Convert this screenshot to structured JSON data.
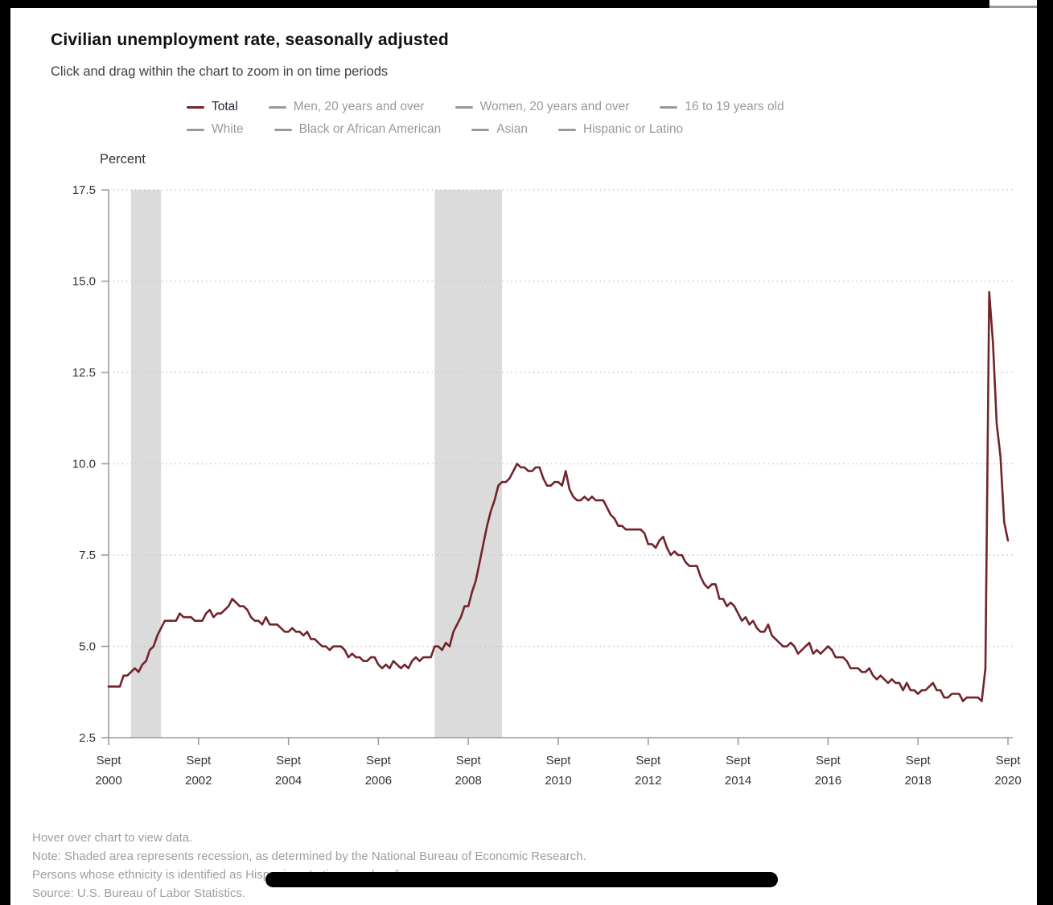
{
  "header": {
    "title": "Civilian unemployment rate, seasonally adjusted",
    "subtitle": "Click and drag within the chart to zoom in on time periods"
  },
  "colors": {
    "accent_line": "#71242a",
    "inactive_gray": "#999999",
    "active_label": "#26263a",
    "grid": "#c9c9c9",
    "axis": "#999999",
    "recession_band": "#dbdbdb",
    "tick_label": "#333333"
  },
  "legend": {
    "rows": [
      [
        {
          "label": "Total",
          "color": "#71242a",
          "label_color": "#26263a",
          "active": true
        },
        {
          "label": "Men, 20 years and over",
          "color": "#999999",
          "label_color": "#999999",
          "active": false
        },
        {
          "label": "Women, 20 years and over",
          "color": "#999999",
          "label_color": "#999999",
          "active": false
        },
        {
          "label": "16 to 19 years old",
          "color": "#999999",
          "label_color": "#999999",
          "active": false
        }
      ],
      [
        {
          "label": "White",
          "color": "#999999",
          "label_color": "#999999",
          "active": false
        },
        {
          "label": "Black or African American",
          "color": "#999999",
          "label_color": "#999999",
          "active": false
        },
        {
          "label": "Asian",
          "color": "#999999",
          "label_color": "#999999",
          "active": false
        },
        {
          "label": "Hispanic or Latino",
          "color": "#999999",
          "label_color": "#999999",
          "active": false
        }
      ]
    ]
  },
  "chart_data": {
    "type": "line",
    "title": "Civilian unemployment rate, seasonally adjusted",
    "ylabel": "Percent",
    "ylim": [
      2.5,
      17.5
    ],
    "y_ticks": [
      2.5,
      5.0,
      7.5,
      10.0,
      12.5,
      15.0,
      17.5
    ],
    "x_month_label": "Sept",
    "x_tick_years": [
      "2000",
      "2002",
      "2004",
      "2006",
      "2008",
      "2010",
      "2012",
      "2014",
      "2016",
      "2018",
      "2020"
    ],
    "x_range": [
      "Sept 2000",
      "Sept 2020"
    ],
    "grid": "dotted-horizontal",
    "legend_position": "top",
    "recessions_month_index": [
      [
        6,
        14
      ],
      [
        87,
        105
      ]
    ],
    "series": [
      {
        "name": "Total",
        "color": "#71242a",
        "start": "Sept 2000",
        "frequency": "monthly",
        "values": [
          3.9,
          3.9,
          3.9,
          3.9,
          4.2,
          4.2,
          4.3,
          4.4,
          4.3,
          4.5,
          4.6,
          4.9,
          5.0,
          5.3,
          5.5,
          5.7,
          5.7,
          5.7,
          5.7,
          5.9,
          5.8,
          5.8,
          5.8,
          5.7,
          5.7,
          5.7,
          5.9,
          6.0,
          5.8,
          5.9,
          5.9,
          6.0,
          6.1,
          6.3,
          6.2,
          6.1,
          6.1,
          6.0,
          5.8,
          5.7,
          5.7,
          5.6,
          5.8,
          5.6,
          5.6,
          5.6,
          5.5,
          5.4,
          5.4,
          5.5,
          5.4,
          5.4,
          5.3,
          5.4,
          5.2,
          5.2,
          5.1,
          5.0,
          5.0,
          4.9,
          5.0,
          5.0,
          5.0,
          4.9,
          4.7,
          4.8,
          4.7,
          4.7,
          4.6,
          4.6,
          4.7,
          4.7,
          4.5,
          4.4,
          4.5,
          4.4,
          4.6,
          4.5,
          4.4,
          4.5,
          4.4,
          4.6,
          4.7,
          4.6,
          4.7,
          4.7,
          4.7,
          5.0,
          5.0,
          4.9,
          5.1,
          5.0,
          5.4,
          5.6,
          5.8,
          6.1,
          6.1,
          6.5,
          6.8,
          7.3,
          7.8,
          8.3,
          8.7,
          9.0,
          9.4,
          9.5,
          9.5,
          9.6,
          9.8,
          10.0,
          9.9,
          9.9,
          9.8,
          9.8,
          9.9,
          9.9,
          9.6,
          9.4,
          9.4,
          9.5,
          9.5,
          9.4,
          9.8,
          9.3,
          9.1,
          9.0,
          9.0,
          9.1,
          9.0,
          9.1,
          9.0,
          9.0,
          9.0,
          8.8,
          8.6,
          8.5,
          8.3,
          8.3,
          8.2,
          8.2,
          8.2,
          8.2,
          8.2,
          8.1,
          7.8,
          7.8,
          7.7,
          7.9,
          8.0,
          7.7,
          7.5,
          7.6,
          7.5,
          7.5,
          7.3,
          7.2,
          7.2,
          7.2,
          6.9,
          6.7,
          6.6,
          6.7,
          6.7,
          6.3,
          6.3,
          6.1,
          6.2,
          6.1,
          5.9,
          5.7,
          5.8,
          5.6,
          5.7,
          5.5,
          5.4,
          5.4,
          5.6,
          5.3,
          5.2,
          5.1,
          5.0,
          5.0,
          5.1,
          5.0,
          4.8,
          4.9,
          5.0,
          5.1,
          4.8,
          4.9,
          4.8,
          4.9,
          5.0,
          4.9,
          4.7,
          4.7,
          4.7,
          4.6,
          4.4,
          4.4,
          4.4,
          4.3,
          4.3,
          4.4,
          4.2,
          4.1,
          4.2,
          4.1,
          4.0,
          4.1,
          4.0,
          4.0,
          3.8,
          4.0,
          3.8,
          3.8,
          3.7,
          3.8,
          3.8,
          3.9,
          4.0,
          3.8,
          3.8,
          3.6,
          3.6,
          3.7,
          3.7,
          3.7,
          3.5,
          3.6,
          3.6,
          3.6,
          3.6,
          3.5,
          4.4,
          14.7,
          13.3,
          11.1,
          10.2,
          8.4,
          7.9
        ]
      }
    ]
  },
  "footer": {
    "lines": [
      "Hover over chart to view data.",
      "Note: Shaded area represents recession, as determined by the National Bureau of Economic Research.",
      "Persons whose ethnicity is identified as Hispanic or Latino may be of any race.",
      "Source: U.S. Bureau of Labor Statistics."
    ]
  }
}
